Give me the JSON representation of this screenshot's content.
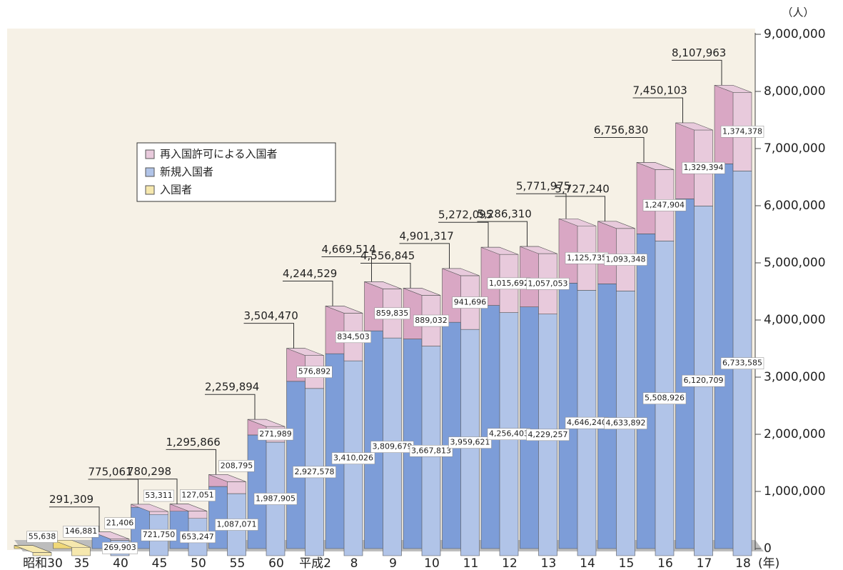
{
  "chart_data": {
    "type": "bar3d_stacked",
    "y_unit": "（人）",
    "x_unit": "(年)",
    "categories": [
      "昭和30",
      "35",
      "40",
      "45",
      "50",
      "55",
      "60",
      "平成2",
      "8",
      "9",
      "10",
      "11",
      "12",
      "13",
      "14",
      "15",
      "16",
      "17",
      "18"
    ],
    "series": [
      {
        "name": "再入国許可による入国者",
        "color": "#d9a7c4",
        "values": [
          null,
          null,
          21406,
          53311,
          127051,
          208795,
          271989,
          576892,
          834503,
          859835,
          889032,
          941696,
          1015692,
          1057053,
          1125735,
          1093348,
          1247904,
          1329394,
          1374378
        ],
        "value_labels": [
          null,
          null,
          "21,406",
          "53,311",
          "127,051",
          "208,795",
          "271,989",
          "576,892",
          "834,503",
          "859,835",
          "889,032",
          "941,696",
          "1,015,692",
          "1,057,053",
          "1,125,735",
          "1,093,348",
          "1,247,904",
          "1,329,394",
          "1,374,378"
        ]
      },
      {
        "name": "新規入国者",
        "color": "#7d9dd8",
        "values": [
          null,
          null,
          269903,
          721750,
          653247,
          1087071,
          1987905,
          2927578,
          3410026,
          3809679,
          3667813,
          3959621,
          4256403,
          4229257,
          4646240,
          4633892,
          5508926,
          6120709,
          6733585
        ],
        "value_labels": [
          null,
          null,
          "269,903",
          "721,750",
          "653,247",
          "1,087,071",
          "1,987,905",
          "2,927,578",
          "3,410,026",
          "3,809,679",
          "3,667,813",
          "3,959,621",
          "4,256,403",
          "4,229,257",
          "4,646,240",
          "4,633,892",
          "5,508,926",
          "6,120,709",
          "6,733,585"
        ]
      },
      {
        "name": "入国者",
        "color": "#f0d878",
        "values": [
          55638,
          146881,
          null,
          null,
          null,
          null,
          null,
          null,
          null,
          null,
          null,
          null,
          null,
          null,
          null,
          null,
          null,
          null,
          null
        ],
        "value_labels": [
          "55,638",
          "146,881",
          null,
          null,
          null,
          null,
          null,
          null,
          null,
          null,
          null,
          null,
          null,
          null,
          null,
          null,
          null,
          null,
          null
        ]
      }
    ],
    "totals": [
      null,
      null,
      291309,
      775061,
      780298,
      1295866,
      2259894,
      3504470,
      4244529,
      4669514,
      4556845,
      4901317,
      5272095,
      5286310,
      5771975,
      5727240,
      6756830,
      7450103,
      8107963
    ],
    "total_labels": [
      null,
      null,
      "291,309",
      "775,061",
      "780,298",
      "1,295,866",
      "2,259,894",
      "3,504,470",
      "4,244,529",
      "4,669,514",
      "4,556,845",
      "4,901,317",
      "5,272,095",
      "5,286,310",
      "5,771,975",
      "5,727,240",
      "6,756,830",
      "7,450,103",
      "8,107,963"
    ],
    "ylim": [
      0,
      9000000
    ],
    "yticks": [
      0,
      {
        "value": 1000000,
        "label": "1,000,000"
      },
      {
        "value": 2000000,
        "label": "2,000,000"
      },
      {
        "value": 3000000,
        "label": "3,000,000"
      },
      {
        "value": 4000000,
        "label": "4,000,000"
      },
      {
        "value": 5000000,
        "label": "5,000,000"
      },
      {
        "value": 6000000,
        "label": "6,000,000"
      },
      {
        "value": 7000000,
        "label": "7,000,000"
      },
      {
        "value": 8000000,
        "label": "8,000,000"
      },
      {
        "value": 9000000,
        "label": "9,000,000"
      }
    ]
  }
}
